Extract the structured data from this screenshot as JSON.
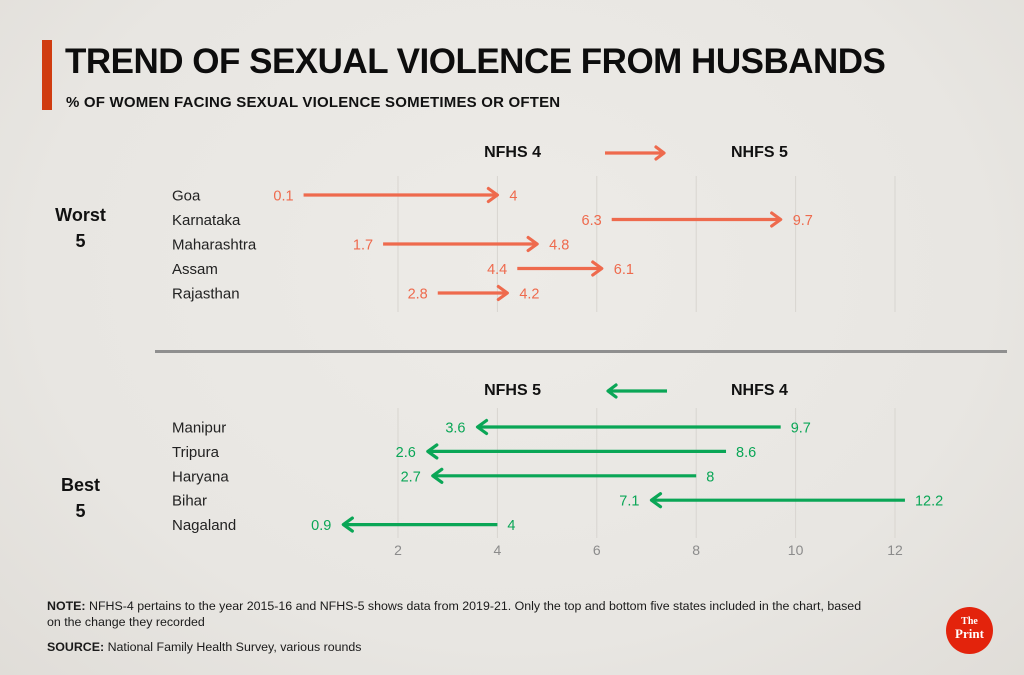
{
  "header": {
    "title": "TREND OF SEXUAL VIOLENCE FROM HUSBANDS",
    "subtitle": "% OF WOMEN FACING SEXUAL VIOLENCE SOMETIMES OR OFTEN"
  },
  "chart_data": [
    {
      "type": "dumbbell-arrow",
      "section": "worst",
      "section_label_line1": "Worst",
      "section_label_line2": "5",
      "legend": {
        "left": "NFHS 4",
        "right": "NHFS 5",
        "arrow_direction": "right"
      },
      "color": "#ee6a4d",
      "categories": [
        "Goa",
        "Karnataka",
        "Maharashtra",
        "Assam",
        "Rajasthan"
      ],
      "series": [
        {
          "name": "NFHS 4",
          "values": [
            0.1,
            6.3,
            1.7,
            4.4,
            2.8
          ]
        },
        {
          "name": "NHFS 5",
          "values": [
            4,
            9.7,
            4.8,
            6.1,
            4.2
          ]
        }
      ]
    },
    {
      "type": "dumbbell-arrow",
      "section": "best",
      "section_label_line1": "Best",
      "section_label_line2": "5",
      "legend": {
        "left": "NFHS 5",
        "right": "NHFS 4",
        "arrow_direction": "left"
      },
      "color": "#0aa656",
      "categories": [
        "Manipur",
        "Tripura",
        "Haryana",
        "Bihar",
        "Nagaland"
      ],
      "series": [
        {
          "name": "NHFS 4",
          "values": [
            9.7,
            8.6,
            8,
            12.2,
            4
          ]
        },
        {
          "name": "NFHS 5",
          "values": [
            3.6,
            2.6,
            2.7,
            7.1,
            0.9
          ]
        }
      ]
    }
  ],
  "x_axis": {
    "min": 0,
    "max": 13.3,
    "ticks": [
      2,
      4,
      6,
      8,
      10,
      12
    ],
    "grid": true
  },
  "footer": {
    "note_label": "NOTE:",
    "note_text": "NFHS-4 pertains to the year 2015-16 and NFHS-5 shows data from 2019-21. Only the top and bottom five states included in the chart, based on the change they recorded",
    "source_label": "SOURCE:",
    "source_text": "National Family Health Survey, various rounds"
  },
  "logo": {
    "line1": "The",
    "line2": "Print"
  },
  "colors": {
    "accent": "#d03c10",
    "worst_arrow": "#ee6a4d",
    "best_arrow": "#0aa656",
    "divider": "#8f8f8f",
    "grid": "#d8d5d0",
    "axis_text": "#8b8b8b",
    "state_label": "#222222",
    "logo_red": "#e3230c",
    "background": "#e9e7e3"
  }
}
